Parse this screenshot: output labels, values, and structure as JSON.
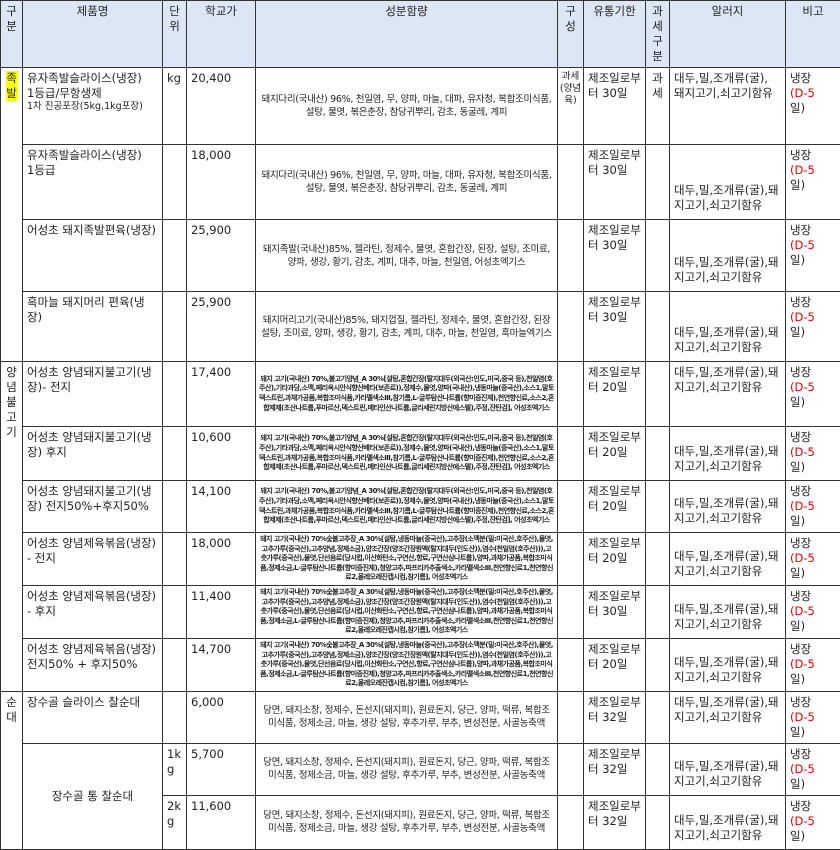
{
  "headers": [
    "구분",
    "제품명",
    "단위",
    "학교가",
    "성분함량",
    "구성",
    "유통기한",
    "과세구분",
    "알러지",
    "비고"
  ],
  "categories": [
    {
      "label": "족발",
      "highlight": true,
      "rows": 4
    },
    {
      "label": "양념불고기",
      "highlight": false,
      "rows": 6
    },
    {
      "label": "순대",
      "highlight": false,
      "rows": 3
    }
  ],
  "rows": [
    {
      "name": "유자족발슬라이스(냉장)\n1등급/무항생제",
      "name_sub": "1차 진공포장(5kg,1kg포장)",
      "unit": "kg",
      "price": "20,400",
      "ingredients": "돼지다리(국내산) 96%, 천일염, 무, 양파, 마늘, 대파, 유자청, 복합조미식품, 설탕, 물엿, 볶은춘장, 참당귀뿌리, 감초, 동굴레, 계피",
      "small": false,
      "comp": "과세(양념육)",
      "expiry": "제조일로부터 30일",
      "tax": "과세",
      "allergy": "대두,밀,조개류(굴), 돼지고기,쇠고기함유",
      "allergy_top": true,
      "note_a": "냉장",
      "note_b": "(D-5",
      "note_c": "일)"
    },
    {
      "name": "유자족발슬라이스(냉장)\n1등급",
      "unit": "",
      "price": "18,000",
      "ingredients": "돼지다리(국내산) 96%, 천일염, 무, 양파, 마늘, 대파, 유자청, 복합조미식품, 설탕, 물엿, 볶은춘장, 참당귀뿌리, 감초, 동굴레, 계피",
      "small": false,
      "comp": "",
      "expiry": "제조일로부터 30일",
      "tax": "",
      "allergy": "대두,밀,조개류(굴),돼지고기,쇠고기함유",
      "note_a": "냉장",
      "note_b": "(D-5",
      "note_c": "일)"
    },
    {
      "name": "어성초 돼지족발편육(냉장)",
      "unit": "",
      "price": "25,900",
      "ingredients": "돼지족발(국내산)85%, 젤라틴, 정제수, 물엿, 혼합간장, 된장, 설탕, 조미료, 양파, 생강, 황기, 감초, 계피, 대추, 마늘, 천일염, 어성초엑기스",
      "small": false,
      "comp": "",
      "expiry": "제조일로부터 30일",
      "tax": "",
      "allergy": "대두,밀,조개류(굴),돼지고기,쇠고기함유",
      "note_a": "냉장",
      "note_b": "(D-5",
      "note_c": "일)"
    },
    {
      "name": "흑마늘 돼지머리 편육(냉장)",
      "unit": "",
      "price": "25,900",
      "ingredients": "돼지머리고기(국내산)85%, 돼지껍질, 젤라틴, 정제수, 물엿, 혼합간장, 된장 설탕, 조미료, 양파, 생강, 황기, 감초, 계피, 대추, 마늘, 천일염, 흑마늘엑기스",
      "small": false,
      "comp": "",
      "expiry": "제조일로부터 30일",
      "tax": "",
      "allergy": "대두,밀,조개류(굴),돼지고기,쇠고기함유",
      "note_a": "냉장",
      "note_b": "(D-5",
      "note_c": "일)"
    },
    {
      "name": "어성초 양념돼지불고기(냉장)- 전지",
      "unit": "",
      "price": "17,400",
      "ingredients": "돼지 고기(국내산) 70%,불고기양념_A 30%[설탕,혼합간장(탈지대두(외국산:인도,미국,중국 등),천일염(호주산),기타과당,소맥,페리옥시안식향산베타(보존료)),정제수,물엿,양파(국내산),냉동마늘(중국산),소스1,말토덱스트린,과채가공품,복합조미식품,카라멜색소Ⅲ,참기름,L-글루탐산나트륨(향미증진제),천연향신료,소스2,혼합제제(초산나트륨,푸마르산,덱스트린,메타인산나트륨,글리세린지방산에스텔),주정,잔탄검], 어성초엑기스",
      "small": true,
      "comp": "",
      "expiry": "제조일로부터 20일",
      "tax": "",
      "allergy": "대두,밀,조개류(굴),돼지고기,쇠고기함유",
      "allergy_top": true,
      "note_a": "냉장",
      "note_b": "(D-5",
      "note_c": "일)"
    },
    {
      "name": "어성초 양념돼지불고기(냉장) 후지",
      "unit": "",
      "price": "10,600",
      "ingredients": "돼지 고기(국내산) 70%,불고기양념_A 30%[설탕,혼합간장(탈지대두(외국산:인도,미국,중국 등),천일염(호주산),기타과당,소맥,페리옥시안식향산베타(보존료)),정제수,물엿,양파(국내산),냉동마늘(중국산),소스1,말토덱스트린,과채가공품,복합조미식품,카라멜색소Ⅲ,참기름,L-글루탐산나트륨(향미증진제),천연향신료,소스2,혼합제제(초산나트륨,푸마르산,덱스트린,메타인산나트륨,글리세린지방산에스텔),주정,잔탄검], 어성초엑기스",
      "small": true,
      "comp": "",
      "expiry": "제조일로부터 20일",
      "tax": "",
      "allergy": "대두,밀,조개류(굴),돼지고기,쇠고기함유",
      "note_a": "냉장",
      "note_b": "(D-5",
      "note_c": "일)"
    },
    {
      "name": "어성초 양념돼지불고기(냉장) 전지50%+후지50%",
      "unit": "",
      "price": "14,100",
      "ingredients": "돼지 고기(국내산) 70%,불고기양념_A 30%[설탕,혼합간장(탈지대두(외국산:인도,미국,중국 등),천일염(호주산),기타과당,소맥,페리옥시안식향산베타(보존료)),정제수,물엿,양파(국내산),냉동마늘(중국산),소스1,말토덱스트린,과채가공품,복합조미식품,카라멜색소Ⅲ,참기름,L-글루탐산나트륨(향미증진제),천연향신료,소스2,혼합제제(초산나트륨,푸마르산,덱스트린,메타인산나트륨,글리세린지방산에스텔),주정,잔탄검], 어성초엑기스",
      "small": true,
      "comp": "",
      "expiry": "제조일로부터 20일",
      "tax": "",
      "allergy": "대두,밀,조개류(굴),돼지고기,쇠고기함유",
      "note_a": "냉장",
      "note_b": "(D-5",
      "note_c": "일)"
    },
    {
      "name": "어성초 양념제육볶음(냉장) - 전지",
      "unit": "",
      "price": "18,000",
      "ingredients": "돼지 고기(국내산) 70%숯불고추장_A 30%[설탕,냉동마늘(중국산),고추장(소맥분(밀:미국산,호주산),물엿,고추가루(중국산),고추양념,정제소금),양조간장(양조간장원액(탈지대두(인도산)),염수(천일염(호주산))),고춧가루(중국산),물엿,단선음료(당시럽,이산화탄소,구연산,향료,구연산삼나트륨),양파,과채가공품,복합조미식품,정제소금,L-글루탐산나트륨(향미증진제),청양고추,파프리카추출색소,카라멜색소Ⅲ,천연향신료1,천연향신료2,올레오레진캡시컴,참기름], 어성초엑기스",
      "small": true,
      "comp": "",
      "expiry": "제조일로부터 20일",
      "tax": "",
      "allergy": "대두,밀,조개류(굴),돼지고기,쇠고기함유",
      "note_a": "냉장",
      "note_b": "(D-5",
      "note_c": "일)"
    },
    {
      "name": "어성초 양념제육볶음(냉장) - 후지",
      "unit": "",
      "price": "11,400",
      "ingredients": "돼지 고기(국내산) 70%숯불고추장_A 30%[설탕,냉동마늘(중국산),고추장(소맥분(밀:미국산,호주산),물엿,고추가루(중국산),고추양념,정제소금),양조간장(양조간장원액(탈지대두(인도산)),염수(천일염(호주산))),고춧가루(중국산),물엿,단선음료(당시럽,이산화탄소,구연산,향료,구연산삼나트륨),양파,과채가공품,복합조미식품,정제소금,L-글루탐산나트륨(향미증진제),청양고추,파프리카추출색소,카라멜색소Ⅲ,천연향신료1,천연향신료2,올레오레진캡시컴,참기름], 어성초엑기스",
      "small": true,
      "comp": "",
      "expiry": "제조일로부터 30일",
      "tax": "",
      "allergy": "대두,밀,조개류(굴),돼지고기,쇠고기함유",
      "note_a": "냉장",
      "note_b": "(D-5",
      "note_c": "일)"
    },
    {
      "name": "어성초 양념제육볶음(냉장)\n전지50% + 후지50%",
      "unit": "",
      "price": "14,700",
      "ingredients": "돼지 고기(국내산) 70%숯불고추장_A 30%[설탕,냉동마늘(중국산),고추장(소맥분(밀:미국산,호주산),물엿,고추가루(중국산),고추양념,정제소금),양조간장(양조간장원액(탈지대두(인도산)),염수(천일염(호주산))),고춧가루(중국산),물엿,단선음료(당시럽,이산화탄소,구연산,향료,구연산삼나트륨),양파,과채가공품,복합조미식품,정제소금,L-글루탐산나트륨(향미증진제),청양고추,파프리카추출색소,카라멜색소Ⅲ,천연향신료1,천연향신료2,올레오레진캡시컴,참기름], 어성초엑기스",
      "small": true,
      "comp": "",
      "expiry": "제조일로부터 20일",
      "tax": "",
      "allergy": "대두,밀,조개류(굴),돼지고기,쇠고기함유",
      "note_a": "냉장",
      "note_b": "(D-5",
      "note_c": "일)"
    },
    {
      "name": "장수골 슬라이스 찰순대",
      "unit": "",
      "price": "6,000",
      "ingredients": "당면, 돼지소창, 정제수, 돈선지(돼지피), 원료돈지, 당근, 양파, 떡류, 복합조미식품, 정제소금, 마늘, 생강 설탕, 후추가루, 부추, 변성전분, 사골농축액",
      "small": false,
      "comp": "",
      "expiry": "제조일로부터 32일",
      "tax": "",
      "allergy": "대두,밀,조개류(굴),돼지고기,쇠고기함유",
      "allergy_top": true,
      "note_a": "냉장",
      "note_b": "(D-5",
      "note_c": "일)"
    },
    {
      "name": "장수골 통 찰순대",
      "name_span": 2,
      "unit": "1kg",
      "price": "5,700",
      "ingredients": "당면, 돼지소창, 정제수, 돈선지(돼지피), 원료돈지, 당근, 양파, 떡류, 복합조미식품, 정제소금, 마늘, 생강 설탕, 후추가루, 부추, 변성전분, 사골농축액",
      "small": false,
      "comp": "",
      "expiry": "제조일로부터 32일",
      "tax": "",
      "allergy": "대두,밀,조개류(굴),돼지고기,쇠고기함유",
      "note_a": "냉장",
      "note_b": "(D-5",
      "note_c": "일)"
    },
    {
      "name_skip": true,
      "unit": "2kg",
      "price": "11,600",
      "ingredients": "당면, 돼지소창, 정제수, 돈선지(돼지피), 원료돈지, 당근, 양파, 떡류, 복합조미식품, 정제소금, 마늘, 생강 설탕, 후추가루, 부추, 변성전분, 사골농축액",
      "small": false,
      "comp": "",
      "expiry": "제조일로부터 32일",
      "tax": "",
      "allergy": "대두,밀,조개류(굴),돼지고기,쇠고기함유",
      "note_a": "냉장",
      "note_b": "(D-5",
      "note_c": "일)"
    }
  ],
  "colors": {
    "header_bg": "#dde6f4",
    "highlight": "#ffff00",
    "note_red": "#ee0000"
  }
}
